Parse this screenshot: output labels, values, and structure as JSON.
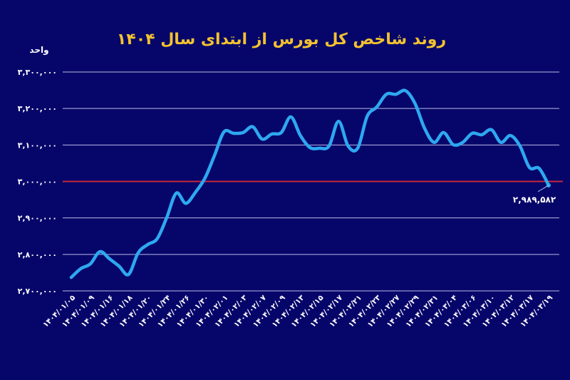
{
  "chart_data": {
    "type": "line",
    "title": "روند شاخص کل بورس از ابتدای سال ۱۴۰۴",
    "ylabel": "واحد",
    "xlabel": "",
    "ylim": [
      2700000,
      3300000
    ],
    "yticks": [
      3300000,
      3200000,
      3100000,
      3000000,
      2900000,
      2800000,
      2700000
    ],
    "ytick_labels": [
      "۳,۳۰۰,۰۰۰",
      "۳,۲۰۰,۰۰۰",
      "۳,۱۰۰,۰۰۰",
      "۳,۰۰۰,۰۰۰",
      "۲,۹۰۰,۰۰۰",
      "۲,۸۰۰,۰۰۰",
      "۲,۷۰۰,۰۰۰"
    ],
    "grid": true,
    "reference_line": {
      "value": 3000000,
      "color": "#c8263a"
    },
    "line_color": "#2ea8f0",
    "x_tick_labels": [
      "۱۴۰۴/۰۱/۰۵",
      "۱۴۰۴/۰۱/۰۹",
      "۱۴۰۴/۰۱/۱۶",
      "۱۴۰۴/۰۱/۱۸",
      "۱۴۰۴/۰۱/۲۰",
      "۱۴۰۴/۰۱/۲۴",
      "۱۴۰۴/۰۱/۲۶",
      "۱۴۰۴/۰۱/۳۰",
      "۱۴۰۴/۰۲/۰۱",
      "۱۴۰۴/۰۲/۰۳",
      "۱۴۰۴/۰۲/۰۷",
      "۱۴۰۴/۰۲/۰۹",
      "۱۴۰۴/۰۲/۱۳",
      "۱۴۰۴/۰۲/۱۵",
      "۱۴۰۴/۰۲/۱۷",
      "۱۴۰۴/۰۲/۲۱",
      "۱۴۰۴/۰۲/۲۳",
      "۱۴۰۴/۰۲/۲۷",
      "۱۴۰۴/۰۲/۲۹",
      "۱۴۰۴/۰۲/۳۱",
      "۱۴۰۴/۰۳/۰۴",
      "۱۴۰۴/۰۳/۰۶",
      "۱۴۰۴/۰۳/۱۰",
      "۱۴۰۴/۰۳/۱۲",
      "۱۴۰۴/۰۳/۱۷",
      "۱۴۰۴/۰۳/۱۹"
    ],
    "values": [
      2737000,
      2761000,
      2774000,
      2807500,
      2788000,
      2768000,
      2745000,
      2804000,
      2827000,
      2843000,
      2901000,
      2968000,
      2940000,
      2970000,
      3009000,
      3071000,
      3136000,
      3132000,
      3134000,
      3150000,
      3116000,
      3130000,
      3134000,
      3177000,
      3126000,
      3093000,
      3091000,
      3097000,
      3165000,
      3097000,
      3091000,
      3179000,
      3204000,
      3239000,
      3239000,
      3249000,
      3214000,
      3146000,
      3107000,
      3134000,
      3101000,
      3107000,
      3132000,
      3128000,
      3142000,
      3107000,
      3126000,
      3097000,
      3038000,
      3036000,
      2989582
    ],
    "last_value_label": "۲,۹۸۹,۵۸۲"
  }
}
